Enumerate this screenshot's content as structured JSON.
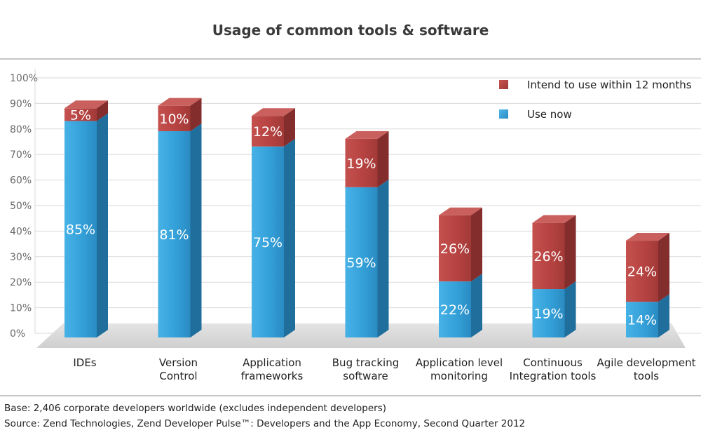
{
  "chart_data": {
    "type": "bar",
    "stacked": true,
    "title": "Usage of common tools & software",
    "categories": [
      [
        "IDEs"
      ],
      [
        "Version",
        "Control"
      ],
      [
        "Application",
        "frameworks"
      ],
      [
        "Bug tracking",
        "software"
      ],
      [
        "Application level",
        "monitoring"
      ],
      [
        "Continuous",
        "Integration tools"
      ],
      [
        "Agile development",
        "tools"
      ]
    ],
    "series": [
      {
        "name": "Use now",
        "color": "#3a9fd5",
        "values": [
          85,
          81,
          75,
          59,
          22,
          19,
          14
        ],
        "labels": [
          "85%",
          "81%",
          "75%",
          "59%",
          "22%",
          "19%",
          "14%"
        ]
      },
      {
        "name": "Intend to use within 12 months",
        "color": "#b84543",
        "values": [
          5,
          10,
          12,
          19,
          26,
          26,
          24
        ],
        "labels": [
          "5%",
          "10%",
          "12%",
          "19%",
          "26%",
          "26%",
          "24%"
        ]
      }
    ],
    "y_ticks": [
      "0%",
      "10%",
      "20%",
      "30%",
      "40%",
      "50%",
      "60%",
      "70%",
      "80%",
      "90%",
      "100%"
    ],
    "ylim": [
      0,
      100
    ],
    "grid": true,
    "legend_position": "top-right",
    "legend_order": [
      1,
      0
    ]
  },
  "footnotes": {
    "base": "Base: 2,406 corporate developers worldwide (excludes independent developers)",
    "source": "Source: Zend Technologies, Zend Developer Pulse™: Developers and the App Economy, Second Quarter 2012"
  }
}
